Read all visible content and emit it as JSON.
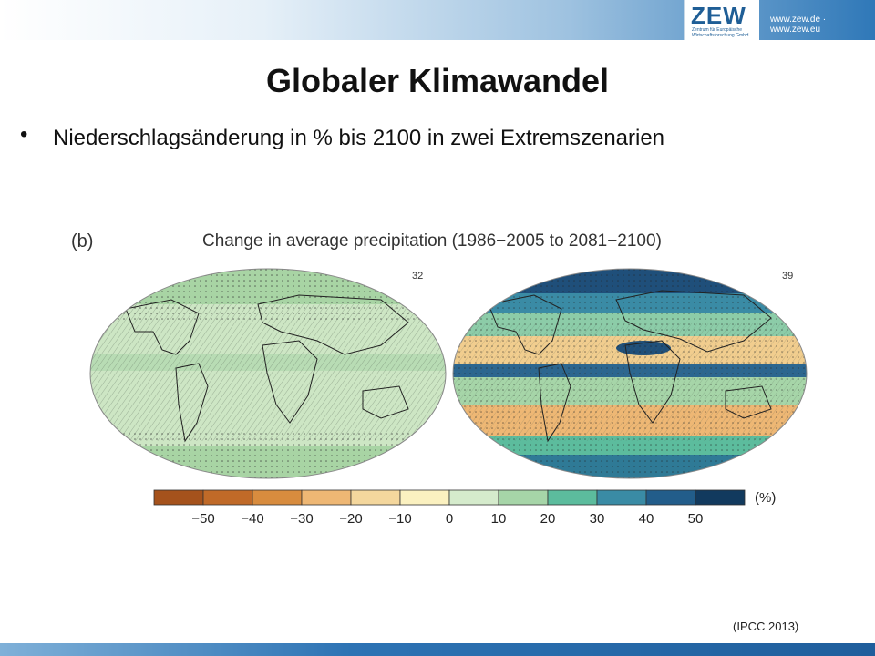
{
  "header": {
    "logo_text": "ZEW",
    "logo_subtext": "Zentrum für Europäische Wirtschaftsforschung GmbH",
    "url": "www.zew.de · www.zew.eu"
  },
  "slide": {
    "title": "Globaler Klimawandel",
    "bullet": "Niederschlagsänderung in % bis 2100 in zwei Extremszenarien",
    "source": "(IPCC 2013)"
  },
  "figure": {
    "panel_label": "(b)",
    "title": "Change in average precipitation (1986−2005 to 2081−2100)",
    "map_left_number": "32",
    "map_right_number": "39",
    "colorbar": {
      "unit": "(%)",
      "ticks": [
        "−50",
        "−40",
        "−30",
        "−20",
        "−10",
        "0",
        "10",
        "20",
        "30",
        "40",
        "50"
      ],
      "colors": [
        "#a5521c",
        "#c06a28",
        "#d88c3e",
        "#eeb774",
        "#f4d79d",
        "#fbf1c0",
        "#d5ebcc",
        "#a6d5a8",
        "#5cbc9d",
        "#3a8ba5",
        "#225d8a",
        "#123a5e"
      ]
    }
  }
}
